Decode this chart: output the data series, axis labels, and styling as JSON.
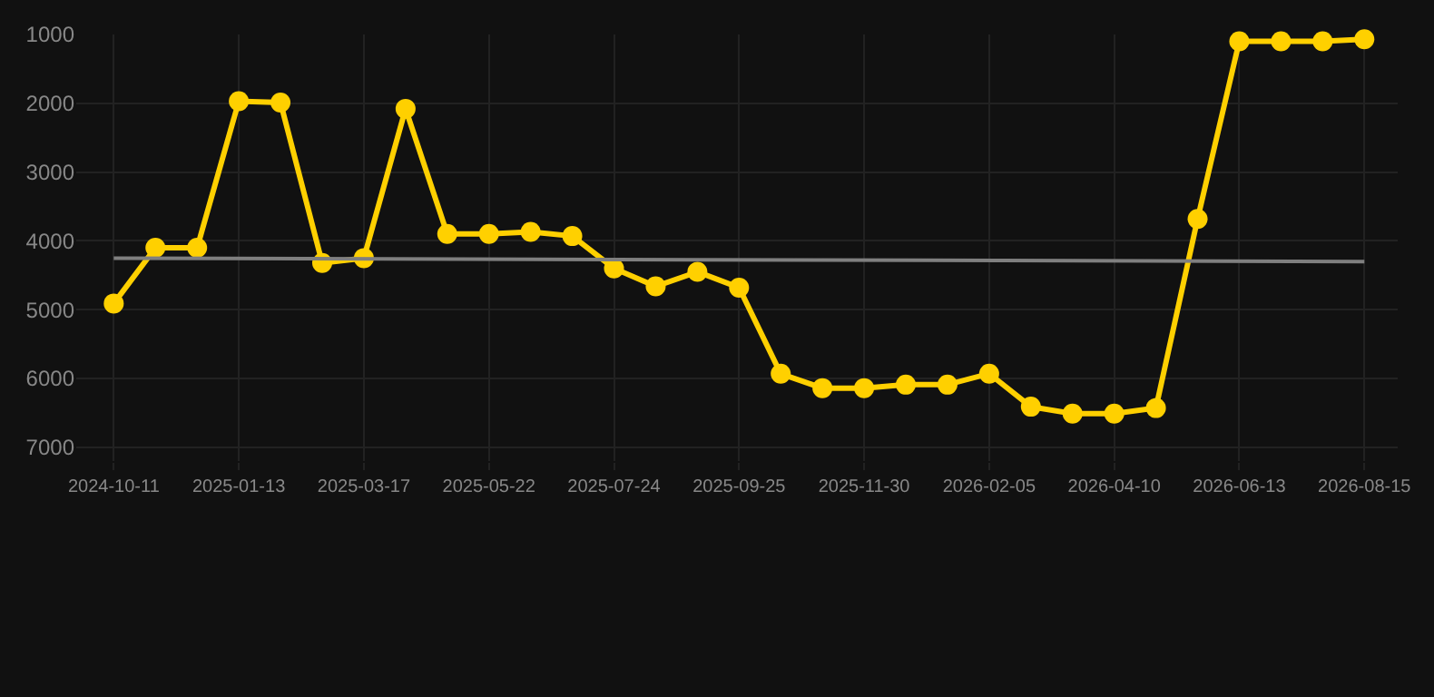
{
  "chart_data": {
    "type": "line",
    "categories": [
      "2024-10-11",
      null,
      null,
      "2025-01-13",
      null,
      null,
      "2025-03-17",
      null,
      null,
      "2025-05-22",
      null,
      null,
      "2025-07-24",
      null,
      null,
      "2025-09-25",
      null,
      null,
      "2025-11-30",
      null,
      null,
      "2026-02-05",
      null,
      null,
      "2026-04-10",
      null,
      null,
      "2026-06-13",
      null,
      null,
      "2026-08-15"
    ],
    "series": [
      {
        "color": "#ffd000",
        "marker": "circle",
        "values": [
          4910,
          4100,
          4100,
          1970,
          1990,
          4320,
          4250,
          2080,
          3900,
          3900,
          3870,
          3930,
          4400,
          4660,
          4450,
          4680,
          5930,
          6140,
          6140,
          6090,
          6090,
          5930,
          6410,
          6510,
          6510,
          6430,
          3680,
          1100,
          1100,
          1100,
          1070
        ]
      },
      {
        "type": "line",
        "color": "#7f7f7f",
        "marker": "none",
        "values": [
          4250,
          null,
          null,
          null,
          null,
          null,
          null,
          null,
          null,
          null,
          null,
          null,
          null,
          null,
          null,
          null,
          null,
          null,
          null,
          null,
          null,
          null,
          null,
          null,
          null,
          null,
          null,
          null,
          null,
          null,
          4300
        ]
      }
    ],
    "ylim": [
      7200,
      1000
    ],
    "yticks": [
      1000,
      2000,
      3000,
      4000,
      5000,
      6000,
      7000
    ],
    "grid": true
  }
}
